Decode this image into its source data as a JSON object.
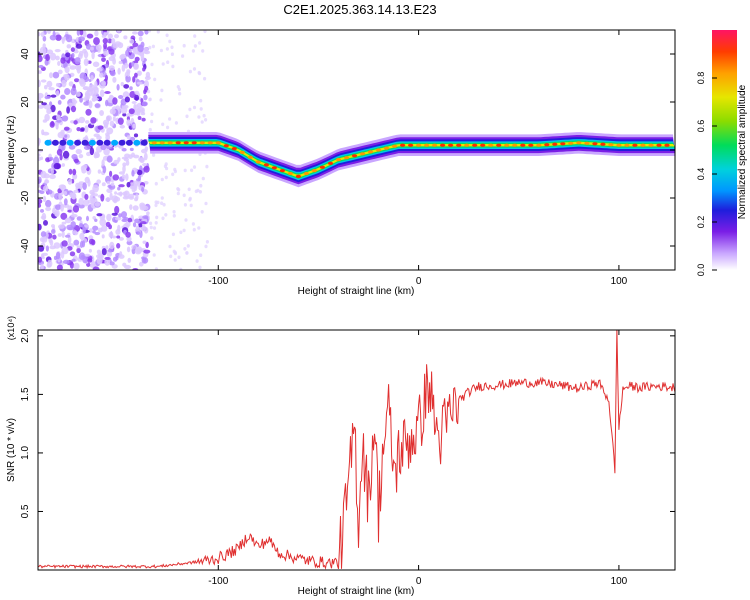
{
  "title": "C2E1.2025.363.14.13.E23",
  "chart_data": [
    {
      "type": "heatmap",
      "name": "spectrogram",
      "xlabel": "Height of straight line (km)",
      "ylabel": "Frequency (Hz)",
      "xlim": [
        -190,
        128
      ],
      "ylim": [
        -50,
        50
      ],
      "xticks": [
        -100,
        0,
        100
      ],
      "yticks": [
        -40,
        -20,
        0,
        20,
        40
      ],
      "xtick_labels": [
        "-100",
        "0",
        "100"
      ],
      "ytick_labels": [
        "-40",
        "-20",
        "0",
        "20",
        "40"
      ],
      "colorbar": {
        "label": "Normalized spectral amplitude",
        "range": [
          0,
          1
        ],
        "ticks": [
          0.0,
          0.2,
          0.4,
          0.6,
          0.8
        ],
        "tick_labels": [
          "0.0",
          "0.2",
          "0.4",
          "0.6",
          "0.8"
        ]
      },
      "ridge": {
        "x": [
          -135,
          -120,
          -100,
          -90,
          -80,
          -70,
          -60,
          -50,
          -40,
          -30,
          -20,
          -10,
          0,
          20,
          40,
          60,
          80,
          100,
          128
        ],
        "y": [
          3,
          3,
          3,
          0,
          -5,
          -8,
          -11,
          -8,
          -4,
          -2,
          0,
          2,
          2,
          2,
          2,
          2,
          3,
          2,
          2
        ]
      },
      "noise_region_x": [
        -190,
        -135
      ]
    },
    {
      "type": "line",
      "name": "snr",
      "xlabel": "Height of straight line (km)",
      "ylabel": "SNR (10 * v/v)",
      "multiplier": "(x10⁴)",
      "xlim": [
        -190,
        128
      ],
      "ylim": [
        0,
        2.05
      ],
      "xticks": [
        -100,
        0,
        100
      ],
      "yticks": [
        0.5,
        1.0,
        1.5,
        2.0
      ],
      "xtick_labels": [
        "-100",
        "0",
        "100"
      ],
      "ytick_labels": [
        "0.5",
        "1.0",
        "1.5",
        "2.0"
      ],
      "series": [
        {
          "name": "SNR",
          "color": "#e03030",
          "x": [
            -190,
            -150,
            -130,
            -120,
            -110,
            -100,
            -90,
            -85,
            -80,
            -75,
            -70,
            -65,
            -60,
            -55,
            -50,
            -45,
            -40,
            -38,
            -35,
            -32,
            -30,
            -28,
            -25,
            -22,
            -20,
            -18,
            -15,
            -12,
            -10,
            -5,
            0,
            5,
            10,
            15,
            20,
            25,
            30,
            40,
            50,
            60,
            70,
            80,
            90,
            95,
            98,
            99,
            100,
            102,
            105,
            110,
            120,
            128
          ],
          "y": [
            0.03,
            0.03,
            0.03,
            0.05,
            0.07,
            0.1,
            0.18,
            0.3,
            0.2,
            0.26,
            0.15,
            0.12,
            0.1,
            0.08,
            0.07,
            0.06,
            0.07,
            0.3,
            0.7,
            1.25,
            0.4,
            1.1,
            0.6,
            1.3,
            0.5,
            1.0,
            1.35,
            0.8,
            1.0,
            1.1,
            1.2,
            1.6,
            1.1,
            1.3,
            1.45,
            1.52,
            1.57,
            1.58,
            1.6,
            1.6,
            1.58,
            1.55,
            1.6,
            1.45,
            0.85,
            2.05,
            1.2,
            1.55,
            1.57,
            1.56,
            1.57,
            1.56
          ]
        }
      ]
    }
  ]
}
